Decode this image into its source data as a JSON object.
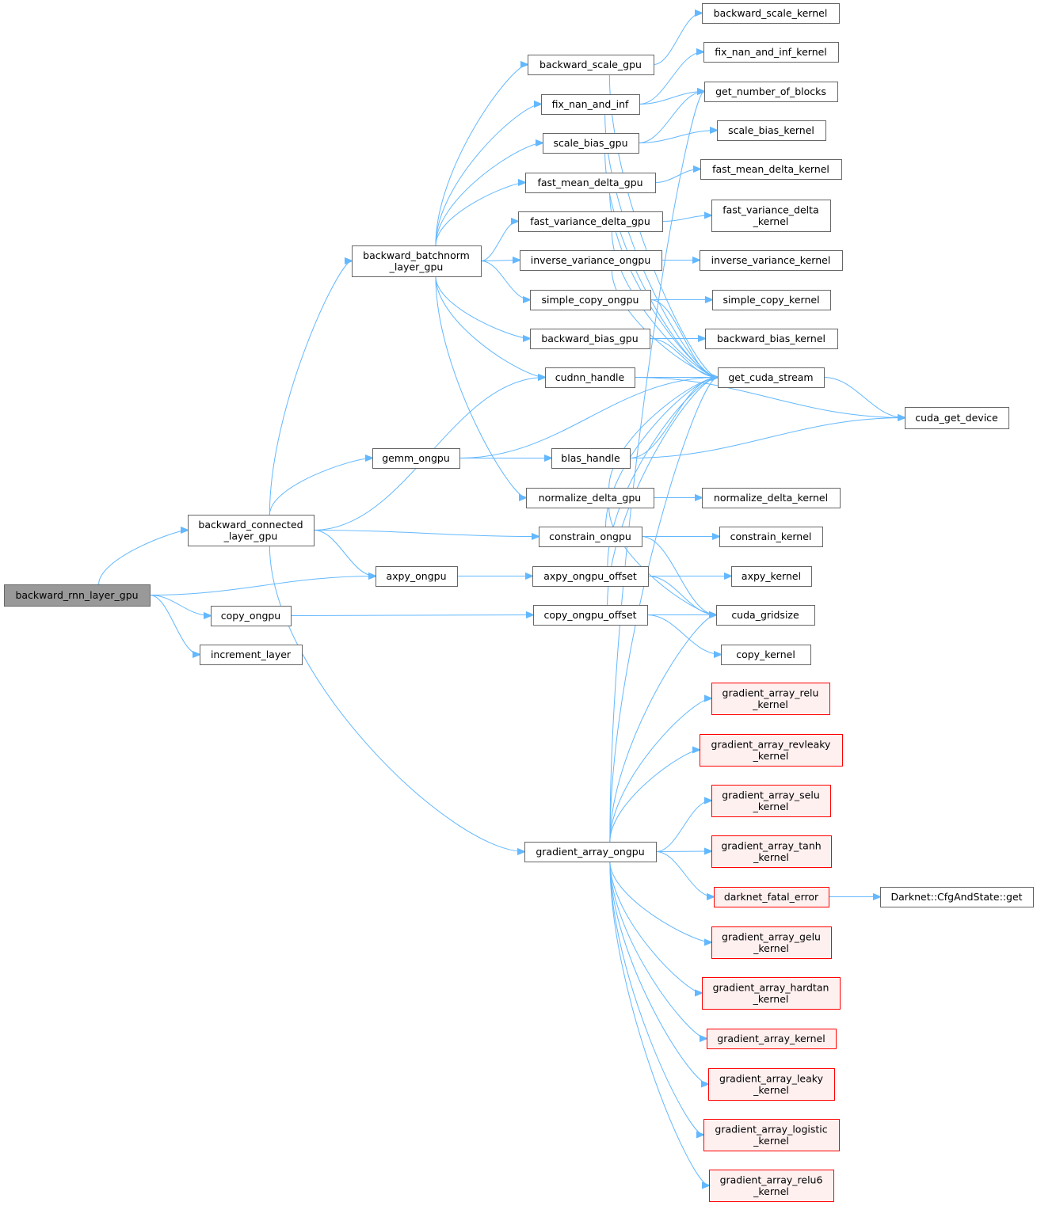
{
  "colors": {
    "edge": "#63b8ff",
    "node_border": "#666666",
    "root_fill": "#999999",
    "warning_fill": "#fff0f0",
    "warning_border": "#ff0000"
  },
  "nodes": [
    {
      "id": "rnn",
      "label": "backward_rnn_layer_gpu",
      "style": "root"
    },
    {
      "id": "conn",
      "label": "backward_connected\n_layer_gpu"
    },
    {
      "id": "copy_ongpu",
      "label": "copy_ongpu"
    },
    {
      "id": "increment",
      "label": "increment_layer"
    },
    {
      "id": "axpy_ongpu",
      "label": "axpy_ongpu"
    },
    {
      "id": "gemm",
      "label": "gemm_ongpu"
    },
    {
      "id": "bn",
      "label": "backward_batchnorm\n_layer_gpu"
    },
    {
      "id": "grad",
      "label": "gradient_array_ongpu"
    },
    {
      "id": "bsg",
      "label": "backward_scale_gpu"
    },
    {
      "id": "fnai",
      "label": "fix_nan_and_inf"
    },
    {
      "id": "sbg",
      "label": "scale_bias_gpu"
    },
    {
      "id": "fmdg",
      "label": "fast_mean_delta_gpu"
    },
    {
      "id": "fvdg",
      "label": "fast_variance_delta_gpu"
    },
    {
      "id": "ivo",
      "label": "inverse_variance_ongpu"
    },
    {
      "id": "sco",
      "label": "simple_copy_ongpu"
    },
    {
      "id": "bbg",
      "label": "backward_bias_gpu"
    },
    {
      "id": "cudnn",
      "label": "cudnn_handle"
    },
    {
      "id": "blas",
      "label": "blas_handle"
    },
    {
      "id": "ndg",
      "label": "normalize_delta_gpu"
    },
    {
      "id": "cons",
      "label": "constrain_ongpu"
    },
    {
      "id": "axoff",
      "label": "axpy_ongpu_offset"
    },
    {
      "id": "cooff",
      "label": "copy_ongpu_offset"
    },
    {
      "id": "bsk",
      "label": "backward_scale_kernel"
    },
    {
      "id": "fnaik",
      "label": "fix_nan_and_inf_kernel"
    },
    {
      "id": "gnob",
      "label": "get_number_of_blocks"
    },
    {
      "id": "sbk",
      "label": "scale_bias_kernel"
    },
    {
      "id": "fmdk",
      "label": "fast_mean_delta_kernel"
    },
    {
      "id": "fvdk",
      "label": "fast_variance_delta\n_kernel"
    },
    {
      "id": "ivk",
      "label": "inverse_variance_kernel"
    },
    {
      "id": "sck",
      "label": "simple_copy_kernel"
    },
    {
      "id": "bbk",
      "label": "backward_bias_kernel"
    },
    {
      "id": "gcs",
      "label": "get_cuda_stream"
    },
    {
      "id": "ndk",
      "label": "normalize_delta_kernel"
    },
    {
      "id": "consk",
      "label": "constrain_kernel"
    },
    {
      "id": "axk",
      "label": "axpy_kernel"
    },
    {
      "id": "cgs",
      "label": "cuda_gridsize"
    },
    {
      "id": "cok",
      "label": "copy_kernel"
    },
    {
      "id": "g_relu",
      "label": "gradient_array_relu\n_kernel",
      "style": "red"
    },
    {
      "id": "g_revleaky",
      "label": "gradient_array_revleaky\n_kernel",
      "style": "red"
    },
    {
      "id": "g_selu",
      "label": "gradient_array_selu\n_kernel",
      "style": "red"
    },
    {
      "id": "g_tanh",
      "label": "gradient_array_tanh\n_kernel",
      "style": "red"
    },
    {
      "id": "dfe",
      "label": "darknet_fatal_error",
      "style": "red"
    },
    {
      "id": "g_gelu",
      "label": "gradient_array_gelu\n_kernel",
      "style": "red"
    },
    {
      "id": "g_hardtan",
      "label": "gradient_array_hardtan\n_kernel",
      "style": "red"
    },
    {
      "id": "g_kernel",
      "label": "gradient_array_kernel",
      "style": "red"
    },
    {
      "id": "g_leaky",
      "label": "gradient_array_leaky\n_kernel",
      "style": "red"
    },
    {
      "id": "g_logistic",
      "label": "gradient_array_logistic\n_kernel",
      "style": "red"
    },
    {
      "id": "g_relu6",
      "label": "gradient_array_relu6\n_kernel",
      "style": "red"
    },
    {
      "id": "cgd",
      "label": "cuda_get_device"
    },
    {
      "id": "cfg",
      "label": "Darknet::CfgAndState::get"
    }
  ],
  "edges": [
    [
      "rnn",
      "conn"
    ],
    [
      "rnn",
      "axpy_ongpu"
    ],
    [
      "rnn",
      "copy_ongpu"
    ],
    [
      "rnn",
      "increment"
    ],
    [
      "conn",
      "bn"
    ],
    [
      "conn",
      "gemm"
    ],
    [
      "conn",
      "cudnn"
    ],
    [
      "conn",
      "axpy_ongpu"
    ],
    [
      "conn",
      "cons"
    ],
    [
      "conn",
      "grad"
    ],
    [
      "bn",
      "bsg"
    ],
    [
      "bn",
      "fnai"
    ],
    [
      "bn",
      "sbg"
    ],
    [
      "bn",
      "fmdg"
    ],
    [
      "bn",
      "fvdg"
    ],
    [
      "bn",
      "ivo"
    ],
    [
      "bn",
      "sco"
    ],
    [
      "bn",
      "bbg"
    ],
    [
      "bn",
      "cudnn"
    ],
    [
      "bn",
      "ndg"
    ],
    [
      "gemm",
      "blas"
    ],
    [
      "gemm",
      "gcs"
    ],
    [
      "axpy_ongpu",
      "axoff"
    ],
    [
      "copy_ongpu",
      "cooff"
    ],
    [
      "bsg",
      "bsk"
    ],
    [
      "bsg",
      "gcs"
    ],
    [
      "fnai",
      "fnaik"
    ],
    [
      "fnai",
      "gnob"
    ],
    [
      "fnai",
      "gcs"
    ],
    [
      "sbg",
      "sbk"
    ],
    [
      "sbg",
      "gnob"
    ],
    [
      "sbg",
      "gcs"
    ],
    [
      "fmdg",
      "fmdk"
    ],
    [
      "fmdg",
      "gcs"
    ],
    [
      "fvdg",
      "fvdk"
    ],
    [
      "fvdg",
      "gcs"
    ],
    [
      "ivo",
      "ivk"
    ],
    [
      "ivo",
      "gcs"
    ],
    [
      "sco",
      "sck"
    ],
    [
      "sco",
      "gcs"
    ],
    [
      "bbg",
      "bbk"
    ],
    [
      "bbg",
      "gcs"
    ],
    [
      "cudnn",
      "gcs"
    ],
    [
      "cudnn",
      "cgd"
    ],
    [
      "blas",
      "gcs"
    ],
    [
      "blas",
      "cgd"
    ],
    [
      "ndg",
      "ndk"
    ],
    [
      "ndg",
      "gcs"
    ],
    [
      "ndg",
      "cgs"
    ],
    [
      "cons",
      "consk"
    ],
    [
      "cons",
      "gcs"
    ],
    [
      "cons",
      "cgs"
    ],
    [
      "axoff",
      "axk"
    ],
    [
      "axoff",
      "gcs"
    ],
    [
      "axoff",
      "cgs"
    ],
    [
      "cooff",
      "gcs"
    ],
    [
      "cooff",
      "cgs"
    ],
    [
      "cooff",
      "cok"
    ],
    [
      "gcs",
      "cgd"
    ],
    [
      "grad",
      "gnob"
    ],
    [
      "grad",
      "gcs"
    ],
    [
      "grad",
      "cgs"
    ],
    [
      "grad",
      "g_relu"
    ],
    [
      "grad",
      "g_revleaky"
    ],
    [
      "grad",
      "g_selu"
    ],
    [
      "grad",
      "g_tanh"
    ],
    [
      "grad",
      "dfe"
    ],
    [
      "grad",
      "g_gelu"
    ],
    [
      "grad",
      "g_hardtan"
    ],
    [
      "grad",
      "g_kernel"
    ],
    [
      "grad",
      "g_leaky"
    ],
    [
      "grad",
      "g_logistic"
    ],
    [
      "grad",
      "g_relu6"
    ],
    [
      "dfe",
      "cfg"
    ]
  ]
}
